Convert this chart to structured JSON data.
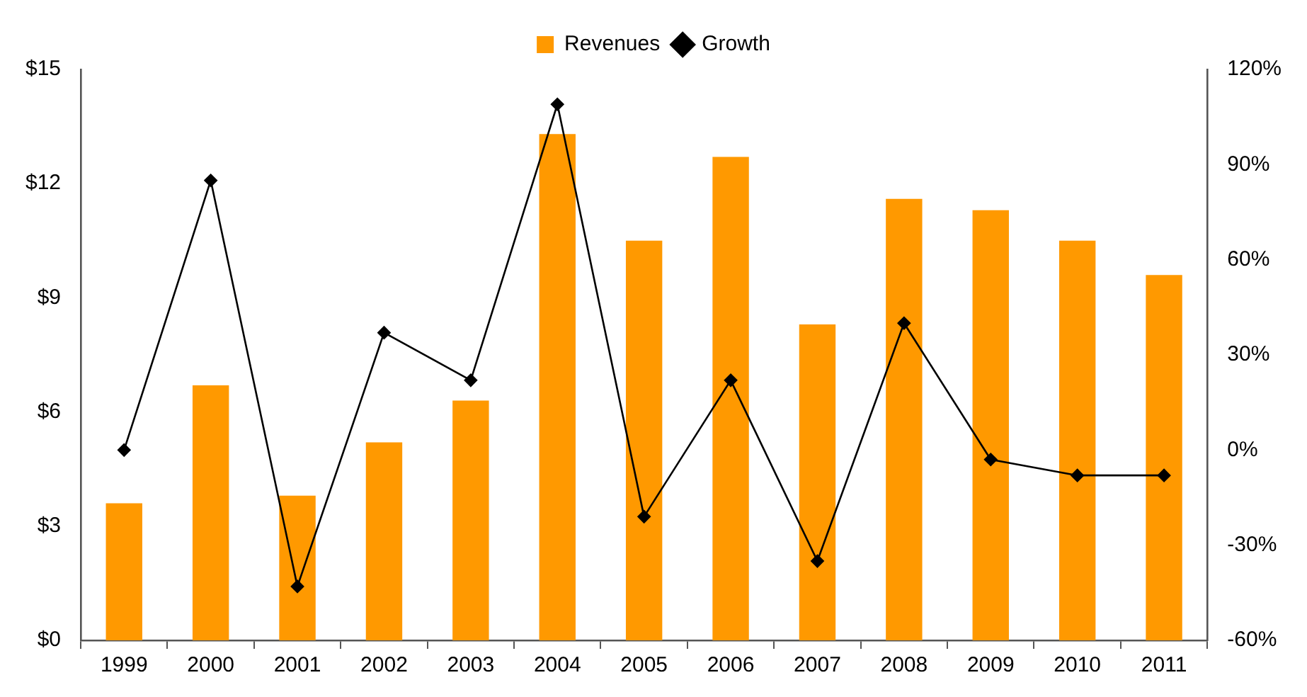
{
  "chart_data": {
    "type": "bar",
    "categories": [
      "1999",
      "2000",
      "2001",
      "2002",
      "2003",
      "2004",
      "2005",
      "2006",
      "2007",
      "2008",
      "2009",
      "2010",
      "2011"
    ],
    "series": [
      {
        "name": "Revenues",
        "color": "#ff9900",
        "values": [
          3.6,
          6.7,
          3.8,
          5.2,
          6.3,
          13.3,
          10.5,
          12.7,
          8.3,
          11.6,
          11.3,
          10.5,
          9.6
        ]
      },
      {
        "name": "Growth",
        "type": "line",
        "axis": "y2",
        "color": "#000000",
        "values": [
          0,
          85,
          -43,
          37,
          22,
          109,
          -21,
          22,
          -35,
          40,
          -3,
          -8,
          -8
        ]
      }
    ],
    "ylim": [
      0,
      15
    ],
    "yticks": [
      {
        "value": 0,
        "label": "$0"
      },
      {
        "value": 3,
        "label": "$3"
      },
      {
        "value": 6,
        "label": "$6"
      },
      {
        "value": 9,
        "label": "$9"
      },
      {
        "value": 12,
        "label": "$12"
      },
      {
        "value": 15,
        "label": "$15"
      }
    ],
    "y2lim": [
      -60,
      120
    ],
    "y2ticks": [
      {
        "value": -60,
        "label": "-60%"
      },
      {
        "value": -30,
        "label": "-30%"
      },
      {
        "value": 0,
        "label": "0%"
      },
      {
        "value": 30,
        "label": "30%"
      },
      {
        "value": 60,
        "label": "60%"
      },
      {
        "value": 90,
        "label": "90%"
      },
      {
        "value": 120,
        "label": "120%"
      }
    ],
    "grid": false,
    "legend": "top",
    "marker": "diamond",
    "line_style": "solid"
  }
}
